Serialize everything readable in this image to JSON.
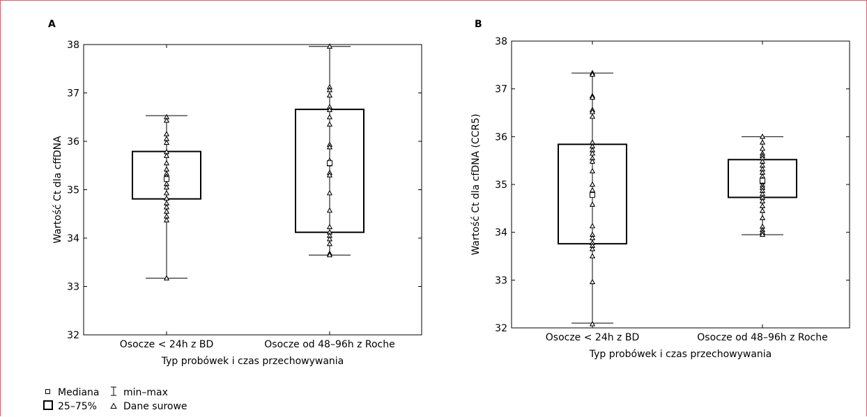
{
  "chart_data": [
    {
      "type": "box",
      "panel_label": "A",
      "xlabel": "Typ probówek i czas przechowywania",
      "ylabel": "Wartość Ct dla cffDNA",
      "ylim": [
        32,
        38
      ],
      "yticks": [
        32,
        33,
        34,
        35,
        36,
        37,
        38
      ],
      "categories": [
        "Osocze < 24h z BD",
        "Osocze od 48–96h z Roche"
      ],
      "boxes": [
        {
          "min": 33.17,
          "q1": 34.81,
          "median": 35.22,
          "q3": 35.79,
          "max": 36.53,
          "raw": [
            36.5,
            36.43,
            36.15,
            36.05,
            35.97,
            35.78,
            35.7,
            35.55,
            35.42,
            35.33,
            35.27,
            35.12,
            35.05,
            34.93,
            34.82,
            34.72,
            34.64,
            34.55,
            34.45,
            34.37,
            33.17
          ]
        },
        {
          "min": 33.65,
          "q1": 34.12,
          "median": 35.55,
          "q3": 36.66,
          "max": 37.96,
          "raw": [
            37.96,
            37.12,
            37.06,
            36.95,
            36.71,
            36.65,
            36.5,
            36.35,
            35.93,
            35.88,
            35.6,
            35.53,
            35.35,
            35.3,
            34.93,
            34.57,
            34.23,
            34.12,
            34.05,
            33.98,
            33.88,
            33.68,
            33.65
          ]
        }
      ]
    },
    {
      "type": "box",
      "panel_label": "B",
      "xlabel": "Typ probówek i czas przechowywania",
      "ylabel": "Wartość Ct dla cfDNA (CCR5)",
      "ylim": [
        32,
        38
      ],
      "yticks": [
        32,
        33,
        34,
        35,
        36,
        37,
        38
      ],
      "categories": [
        "Osocze < 24h z BD",
        "Osocze od 48–96h z Roche"
      ],
      "boxes": [
        {
          "min": 32.1,
          "q1": 33.76,
          "median": 34.78,
          "q3": 35.84,
          "max": 37.33,
          "raw": [
            37.33,
            37.3,
            36.85,
            36.82,
            36.56,
            36.52,
            36.42,
            35.88,
            35.8,
            35.72,
            35.65,
            35.55,
            35.48,
            35.28,
            35.0,
            34.88,
            34.58,
            34.13,
            33.95,
            33.88,
            33.78,
            33.72,
            33.65,
            33.5,
            32.96,
            32.08
          ]
        },
        {
          "min": 33.95,
          "q1": 34.73,
          "median": 35.08,
          "q3": 35.52,
          "max": 36.0,
          "raw": [
            36.0,
            35.88,
            35.75,
            35.65,
            35.6,
            35.55,
            35.48,
            35.4,
            35.32,
            35.25,
            35.17,
            35.1,
            35.05,
            34.98,
            34.93,
            34.87,
            34.8,
            34.72,
            34.65,
            34.55,
            34.45,
            34.3,
            34.12,
            34.05,
            34.0,
            33.95
          ]
        }
      ]
    }
  ],
  "legend": {
    "median": "Mediana",
    "iqr": "25–75%",
    "range": "min–max",
    "raw": "Dane surowe"
  }
}
